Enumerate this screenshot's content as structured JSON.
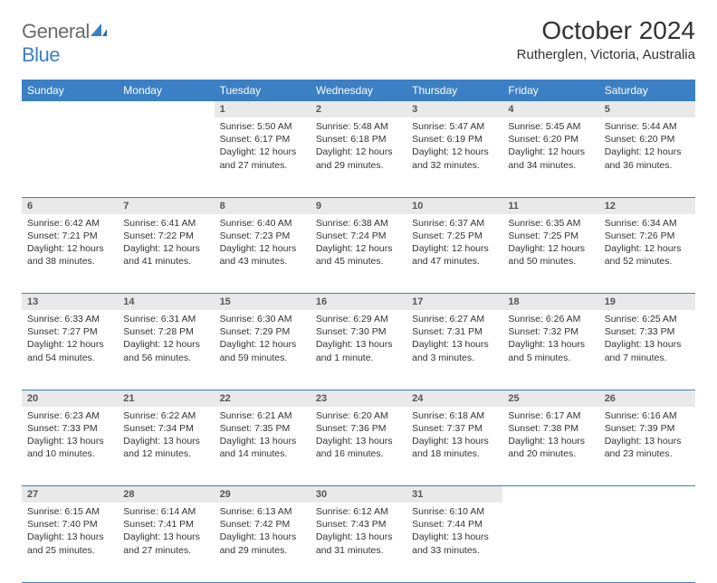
{
  "logo": {
    "text_gray": "General",
    "text_blue": "Blue"
  },
  "title": "October 2024",
  "location": "Rutherglen, Victoria, Australia",
  "colors": {
    "header_bg": "#3b7fc4",
    "header_text": "#ffffff",
    "daynum_bg": "#e9e9e9",
    "daynum_text": "#555555",
    "cell_border": "#3b7fc4",
    "body_text": "#333333",
    "logo_gray": "#6b6b6b",
    "logo_blue": "#3b7fc4"
  },
  "weekdays": [
    "Sunday",
    "Monday",
    "Tuesday",
    "Wednesday",
    "Thursday",
    "Friday",
    "Saturday"
  ],
  "weeks": [
    [
      null,
      null,
      {
        "n": "1",
        "sr": "5:50 AM",
        "ss": "6:17 PM",
        "dl": "12 hours and 27 minutes."
      },
      {
        "n": "2",
        "sr": "5:48 AM",
        "ss": "6:18 PM",
        "dl": "12 hours and 29 minutes."
      },
      {
        "n": "3",
        "sr": "5:47 AM",
        "ss": "6:19 PM",
        "dl": "12 hours and 32 minutes."
      },
      {
        "n": "4",
        "sr": "5:45 AM",
        "ss": "6:20 PM",
        "dl": "12 hours and 34 minutes."
      },
      {
        "n": "5",
        "sr": "5:44 AM",
        "ss": "6:20 PM",
        "dl": "12 hours and 36 minutes."
      }
    ],
    [
      {
        "n": "6",
        "sr": "6:42 AM",
        "ss": "7:21 PM",
        "dl": "12 hours and 38 minutes."
      },
      {
        "n": "7",
        "sr": "6:41 AM",
        "ss": "7:22 PM",
        "dl": "12 hours and 41 minutes."
      },
      {
        "n": "8",
        "sr": "6:40 AM",
        "ss": "7:23 PM",
        "dl": "12 hours and 43 minutes."
      },
      {
        "n": "9",
        "sr": "6:38 AM",
        "ss": "7:24 PM",
        "dl": "12 hours and 45 minutes."
      },
      {
        "n": "10",
        "sr": "6:37 AM",
        "ss": "7:25 PM",
        "dl": "12 hours and 47 minutes."
      },
      {
        "n": "11",
        "sr": "6:35 AM",
        "ss": "7:25 PM",
        "dl": "12 hours and 50 minutes."
      },
      {
        "n": "12",
        "sr": "6:34 AM",
        "ss": "7:26 PM",
        "dl": "12 hours and 52 minutes."
      }
    ],
    [
      {
        "n": "13",
        "sr": "6:33 AM",
        "ss": "7:27 PM",
        "dl": "12 hours and 54 minutes."
      },
      {
        "n": "14",
        "sr": "6:31 AM",
        "ss": "7:28 PM",
        "dl": "12 hours and 56 minutes."
      },
      {
        "n": "15",
        "sr": "6:30 AM",
        "ss": "7:29 PM",
        "dl": "12 hours and 59 minutes."
      },
      {
        "n": "16",
        "sr": "6:29 AM",
        "ss": "7:30 PM",
        "dl": "13 hours and 1 minute."
      },
      {
        "n": "17",
        "sr": "6:27 AM",
        "ss": "7:31 PM",
        "dl": "13 hours and 3 minutes."
      },
      {
        "n": "18",
        "sr": "6:26 AM",
        "ss": "7:32 PM",
        "dl": "13 hours and 5 minutes."
      },
      {
        "n": "19",
        "sr": "6:25 AM",
        "ss": "7:33 PM",
        "dl": "13 hours and 7 minutes."
      }
    ],
    [
      {
        "n": "20",
        "sr": "6:23 AM",
        "ss": "7:33 PM",
        "dl": "13 hours and 10 minutes."
      },
      {
        "n": "21",
        "sr": "6:22 AM",
        "ss": "7:34 PM",
        "dl": "13 hours and 12 minutes."
      },
      {
        "n": "22",
        "sr": "6:21 AM",
        "ss": "7:35 PM",
        "dl": "13 hours and 14 minutes."
      },
      {
        "n": "23",
        "sr": "6:20 AM",
        "ss": "7:36 PM",
        "dl": "13 hours and 16 minutes."
      },
      {
        "n": "24",
        "sr": "6:18 AM",
        "ss": "7:37 PM",
        "dl": "13 hours and 18 minutes."
      },
      {
        "n": "25",
        "sr": "6:17 AM",
        "ss": "7:38 PM",
        "dl": "13 hours and 20 minutes."
      },
      {
        "n": "26",
        "sr": "6:16 AM",
        "ss": "7:39 PM",
        "dl": "13 hours and 23 minutes."
      }
    ],
    [
      {
        "n": "27",
        "sr": "6:15 AM",
        "ss": "7:40 PM",
        "dl": "13 hours and 25 minutes."
      },
      {
        "n": "28",
        "sr": "6:14 AM",
        "ss": "7:41 PM",
        "dl": "13 hours and 27 minutes."
      },
      {
        "n": "29",
        "sr": "6:13 AM",
        "ss": "7:42 PM",
        "dl": "13 hours and 29 minutes."
      },
      {
        "n": "30",
        "sr": "6:12 AM",
        "ss": "7:43 PM",
        "dl": "13 hours and 31 minutes."
      },
      {
        "n": "31",
        "sr": "6:10 AM",
        "ss": "7:44 PM",
        "dl": "13 hours and 33 minutes."
      },
      null,
      null
    ]
  ],
  "labels": {
    "sunrise": "Sunrise:",
    "sunset": "Sunset:",
    "daylight": "Daylight:"
  }
}
